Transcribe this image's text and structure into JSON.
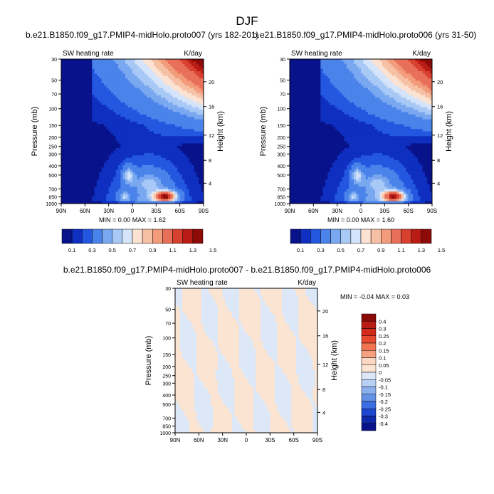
{
  "title": "DJF",
  "panels": [
    {
      "title": "b.e21.B1850.f09_g17.PMIP4-midHolo.proto007 (yrs 182-201)",
      "left_label": "SW heating rate",
      "right_label": "K/day",
      "minmax": "MIN =  0.00  MAX =  1.62"
    },
    {
      "title": "b.e21.B1850.f09_g17.PMIP4-midHolo.proto006 (yrs 31-50)",
      "left_label": "SW heating rate",
      "right_label": "K/day",
      "minmax": "MIN =  0.00  MAX =  1.60"
    },
    {
      "title": "b.e21.B1850.f09_g17.PMIP4-midHolo.proto007 - b.e21.B1850.f09_g17.PMIP4-midHolo.proto006",
      "left_label": "SW heating rate",
      "right_label": "K/day",
      "minmax": "MIN = -0.04  MAX =  0.03"
    }
  ],
  "chart_data": [
    {
      "type": "heatmap",
      "xlabel": "",
      "ylabel": "Pressure (mb)",
      "y2label": "Height (km)",
      "x_ticks": [
        "90N",
        "60N",
        "30N",
        "0",
        "30S",
        "60S",
        "90S"
      ],
      "y_ticks": [
        "30",
        "50",
        "70",
        "100",
        "150",
        "200",
        "250",
        "300",
        "400",
        "500",
        "700",
        "850",
        "1000"
      ],
      "y2_ticks": [
        "20",
        "16",
        "12",
        "8",
        "4"
      ],
      "y_scale": "log",
      "y_range": [
        30,
        1000
      ],
      "x_range": [
        90,
        -90
      ],
      "levels": [
        "0.1",
        "0.3",
        "0.5",
        "0.7",
        "0.9",
        "1.1",
        "1.3",
        "1.5"
      ],
      "features": [
        {
          "lat": -45,
          "p": 850,
          "value": 1.62
        },
        {
          "lat": 0,
          "p": 500,
          "value": 0.95
        },
        {
          "lat": -90,
          "p": 30,
          "value": 1.6
        }
      ]
    },
    {
      "type": "heatmap",
      "xlabel": "",
      "ylabel": "Pressure (mb)",
      "y2label": "Height (km)",
      "x_ticks": [
        "90N",
        "60N",
        "30N",
        "0",
        "30S",
        "60S",
        "90S"
      ],
      "y_ticks": [
        "30",
        "50",
        "70",
        "100",
        "150",
        "200",
        "250",
        "300",
        "400",
        "500",
        "700",
        "850",
        "1000"
      ],
      "y2_ticks": [
        "20",
        "16",
        "12",
        "8",
        "4"
      ],
      "y_scale": "log",
      "y_range": [
        30,
        1000
      ],
      "x_range": [
        90,
        -90
      ],
      "levels": [
        "0.1",
        "0.3",
        "0.5",
        "0.7",
        "0.9",
        "1.1",
        "1.3",
        "1.5"
      ],
      "features": [
        {
          "lat": -45,
          "p": 850,
          "value": 1.6
        },
        {
          "lat": 0,
          "p": 500,
          "value": 0.95
        },
        {
          "lat": -90,
          "p": 30,
          "value": 1.6
        }
      ]
    },
    {
      "type": "heatmap",
      "xlabel": "",
      "ylabel": "Pressure (mb)",
      "y2label": "Height (km)",
      "x_ticks": [
        "90N",
        "60N",
        "30N",
        "0",
        "30S",
        "60S",
        "90S"
      ],
      "y_ticks": [
        "30",
        "50",
        "70",
        "100",
        "150",
        "200",
        "250",
        "300",
        "400",
        "500",
        "700",
        "850",
        "1000"
      ],
      "y2_ticks": [
        "20",
        "16",
        "12",
        "8",
        "4"
      ],
      "y_scale": "log",
      "y_range": [
        30,
        1000
      ],
      "x_range": [
        90,
        -90
      ],
      "levels": [
        "0.4",
        "0.3",
        "0.25",
        "0.2",
        "0.15",
        "0.1",
        "0.05",
        "0",
        "-0.05",
        "-0.1",
        "-0.15",
        "-0.2",
        "-0.25",
        "-0.3",
        "-0.4"
      ],
      "min": -0.04,
      "max": 0.03
    }
  ],
  "colors": {
    "abs_scale": [
      "#08128a",
      "#0f2fc0",
      "#2457e0",
      "#4a83ea",
      "#7aa8f0",
      "#a8c8f5",
      "#d4e4fa",
      "#fbe2d2",
      "#f6c0a4",
      "#f29c7c",
      "#e8705a",
      "#d84030",
      "#b81c14",
      "#8c0a08"
    ],
    "diff_scale": [
      "#8c0a08",
      "#b81c14",
      "#d42a1c",
      "#e84a30",
      "#f27450",
      "#f6a080",
      "#fbd6c0",
      "#fbe4d2",
      "#dce8f8",
      "#b8d0f4",
      "#8cb0ee",
      "#6490e6",
      "#3c6ee0",
      "#1e46d0",
      "#0f2aa8",
      "#08128a"
    ]
  }
}
